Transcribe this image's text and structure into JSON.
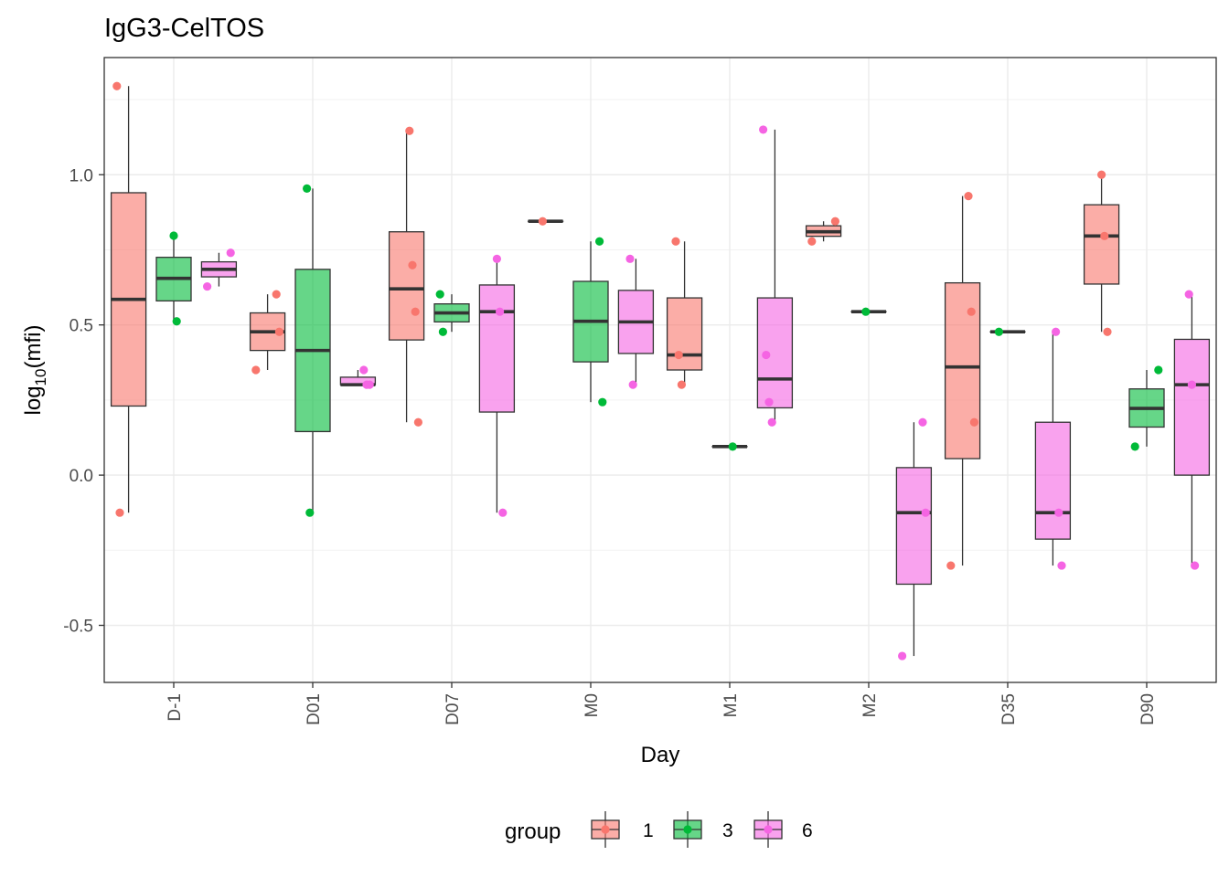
{
  "chart_data": {
    "type": "box",
    "title": "IgG3-CelTOS",
    "xlabel": "Day",
    "ylabel_base": "log",
    "ylabel_sub": "10",
    "ylabel_arg": "(mfi)",
    "ylim": [
      -0.69,
      1.39
    ],
    "yticks": [
      "-0.5",
      "0.0",
      "0.5",
      "1.0"
    ],
    "grid": true,
    "legend_position": "bottom",
    "legend_title": "group",
    "categories": [
      "D-1",
      "D01",
      "D07",
      "M0",
      "M1",
      "M2",
      "D35",
      "D90"
    ],
    "series": [
      {
        "name": "1",
        "color": "#F8766D",
        "boxes": [
          {
            "category": "D-1",
            "low": -0.125,
            "q1": 0.23,
            "median": 0.585,
            "q3": 0.94,
            "high": 1.295
          },
          {
            "category": "D01",
            "low": 0.35,
            "q1": 0.415,
            "median": 0.477,
            "q3": 0.54,
            "high": 0.602
          },
          {
            "category": "D07",
            "low": 0.176,
            "q1": 0.45,
            "median": 0.62,
            "q3": 0.81,
            "high": 1.146
          },
          {
            "category": "M0",
            "low": 0.845,
            "q1": 0.845,
            "median": 0.845,
            "q3": 0.845,
            "high": 0.845
          },
          {
            "category": "M1",
            "low": 0.301,
            "q1": 0.35,
            "median": 0.4,
            "q3": 0.59,
            "high": 0.778
          },
          {
            "category": "M2",
            "low": 0.778,
            "q1": 0.795,
            "median": 0.81,
            "q3": 0.83,
            "high": 0.845
          },
          {
            "category": "D35",
            "low": -0.301,
            "q1": 0.055,
            "median": 0.36,
            "q3": 0.64,
            "high": 0.929
          },
          {
            "category": "D90",
            "low": 0.477,
            "q1": 0.636,
            "median": 0.796,
            "q3": 0.9,
            "high": 1.0
          }
        ],
        "points": [
          {
            "category": "D-1",
            "values": [
              1.295,
              -0.125
            ]
          },
          {
            "category": "D01",
            "values": [
              0.602,
              0.477,
              0.35
            ]
          },
          {
            "category": "D07",
            "values": [
              1.146,
              0.699,
              0.544,
              0.176
            ]
          },
          {
            "category": "M0",
            "values": [
              0.845
            ]
          },
          {
            "category": "M1",
            "values": [
              0.778,
              0.4,
              0.301
            ]
          },
          {
            "category": "M2",
            "values": [
              0.845,
              0.778
            ]
          },
          {
            "category": "D35",
            "values": [
              0.929,
              0.544,
              0.176,
              -0.301
            ]
          },
          {
            "category": "D90",
            "values": [
              1.0,
              0.796,
              0.477
            ]
          }
        ]
      },
      {
        "name": "3",
        "color": "#00BA38",
        "boxes": [
          {
            "category": "D-1",
            "low": 0.512,
            "q1": 0.58,
            "median": 0.655,
            "q3": 0.725,
            "high": 0.797
          },
          {
            "category": "D01",
            "low": -0.125,
            "q1": 0.145,
            "median": 0.415,
            "q3": 0.685,
            "high": 0.954
          },
          {
            "category": "D07",
            "low": 0.477,
            "q1": 0.51,
            "median": 0.54,
            "q3": 0.57,
            "high": 0.602
          },
          {
            "category": "M0",
            "low": 0.243,
            "q1": 0.377,
            "median": 0.512,
            "q3": 0.645,
            "high": 0.778
          },
          {
            "category": "M1",
            "low": 0.095,
            "q1": 0.095,
            "median": 0.095,
            "q3": 0.095,
            "high": 0.095
          },
          {
            "category": "M2",
            "low": 0.544,
            "q1": 0.544,
            "median": 0.544,
            "q3": 0.544,
            "high": 0.544
          },
          {
            "category": "D35",
            "low": 0.477,
            "q1": 0.477,
            "median": 0.477,
            "q3": 0.477,
            "high": 0.477
          },
          {
            "category": "D90",
            "low": 0.095,
            "q1": 0.16,
            "median": 0.222,
            "q3": 0.287,
            "high": 0.35
          }
        ],
        "points": [
          {
            "category": "D-1",
            "values": [
              0.797,
              0.512
            ]
          },
          {
            "category": "D01",
            "values": [
              0.954,
              -0.125
            ]
          },
          {
            "category": "D07",
            "values": [
              0.602,
              0.477
            ]
          },
          {
            "category": "M0",
            "values": [
              0.778,
              0.243
            ]
          },
          {
            "category": "M1",
            "values": [
              0.095
            ]
          },
          {
            "category": "M2",
            "values": [
              0.544
            ]
          },
          {
            "category": "D35",
            "values": [
              0.477
            ]
          },
          {
            "category": "D90",
            "values": [
              0.35,
              0.095
            ]
          }
        ]
      },
      {
        "name": "6",
        "color": "#F564E3",
        "boxes": [
          {
            "category": "D-1",
            "low": 0.628,
            "q1": 0.66,
            "median": 0.685,
            "q3": 0.71,
            "high": 0.74
          },
          {
            "category": "D01",
            "low": 0.301,
            "q1": 0.301,
            "median": 0.301,
            "q3": 0.326,
            "high": 0.35
          },
          {
            "category": "D07",
            "low": -0.125,
            "q1": 0.21,
            "median": 0.544,
            "q3": 0.633,
            "high": 0.72
          },
          {
            "category": "M0",
            "low": 0.301,
            "q1": 0.405,
            "median": 0.51,
            "q3": 0.615,
            "high": 0.72
          },
          {
            "category": "M1",
            "low": 0.176,
            "q1": 0.224,
            "median": 0.32,
            "q3": 0.59,
            "high": 1.15
          },
          {
            "category": "M2",
            "low": -0.602,
            "q1": -0.363,
            "median": -0.125,
            "q3": 0.025,
            "high": 0.176
          },
          {
            "category": "D35",
            "low": -0.301,
            "q1": -0.213,
            "median": -0.125,
            "q3": 0.176,
            "high": 0.477
          },
          {
            "category": "D90",
            "low": -0.301,
            "q1": 0.0,
            "median": 0.301,
            "q3": 0.452,
            "high": 0.602
          }
        ],
        "points": [
          {
            "category": "D-1",
            "values": [
              0.74,
              0.628
            ]
          },
          {
            "category": "D01",
            "values": [
              0.35,
              0.301,
              0.301
            ]
          },
          {
            "category": "D07",
            "values": [
              0.72,
              0.544,
              -0.125
            ]
          },
          {
            "category": "M0",
            "values": [
              0.72,
              0.301
            ]
          },
          {
            "category": "M1",
            "values": [
              1.15,
              0.4,
              0.243,
              0.176
            ]
          },
          {
            "category": "M2",
            "values": [
              0.176,
              -0.125,
              -0.602
            ]
          },
          {
            "category": "D35",
            "values": [
              0.477,
              -0.125,
              -0.301
            ]
          },
          {
            "category": "D90",
            "values": [
              0.602,
              0.301,
              -0.301
            ]
          }
        ]
      }
    ]
  }
}
